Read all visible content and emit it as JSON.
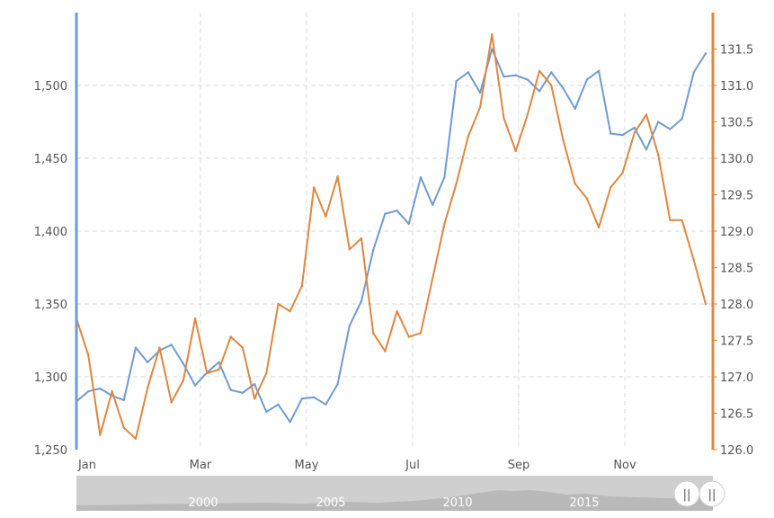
{
  "chart_data": {
    "type": "line",
    "title": "",
    "xlabel": "",
    "x_ticks": [
      "Jan",
      "Mar",
      "May",
      "Jul",
      "Sep",
      "Nov"
    ],
    "y_left": {
      "range": [
        1250,
        1550
      ],
      "ticks": [
        "1,250",
        "1,300",
        "1,350",
        "1,400",
        "1,450",
        "1,500"
      ]
    },
    "y_right": {
      "range": [
        126.0,
        132.0
      ],
      "ticks": [
        "126.0",
        "126.5",
        "127.0",
        "127.5",
        "128.0",
        "128.5",
        "129.0",
        "129.5",
        "130.0",
        "130.5",
        "131.0",
        "131.5"
      ]
    },
    "grid": true,
    "legend": "none",
    "series": [
      {
        "axis": "left",
        "color": "#6f9bd2",
        "values": [
          1283,
          1290,
          1292,
          1287,
          1284,
          1320,
          1310,
          1318,
          1322,
          1309,
          1294,
          1303,
          1310,
          1291,
          1289,
          1295,
          1276,
          1281,
          1269,
          1285,
          1286,
          1281,
          1295,
          1335,
          1352,
          1387,
          1412,
          1414,
          1405,
          1437,
          1418,
          1437,
          1503,
          1509,
          1495,
          1525,
          1506,
          1507,
          1504,
          1496,
          1509,
          1498,
          1484,
          1504,
          1510,
          1467,
          1466,
          1471,
          1456,
          1475,
          1470,
          1477,
          1509,
          1522
        ]
      },
      {
        "axis": "right",
        "color": "#de8740",
        "values": [
          127.8,
          127.3,
          126.2,
          126.8,
          126.3,
          126.15,
          126.85,
          127.4,
          126.65,
          126.95,
          127.8,
          127.05,
          127.1,
          127.55,
          127.4,
          126.7,
          127.05,
          128.0,
          127.9,
          128.25,
          129.6,
          129.2,
          129.75,
          128.75,
          128.9,
          127.6,
          127.35,
          127.9,
          127.55,
          127.6,
          128.35,
          129.1,
          129.65,
          130.3,
          130.7,
          131.7,
          130.55,
          130.1,
          130.6,
          131.2,
          131.0,
          130.25,
          129.65,
          129.45,
          129.05,
          129.6,
          129.8,
          130.35,
          130.6,
          130.05,
          129.15,
          129.15,
          128.6,
          128.0
        ]
      }
    ]
  },
  "navigator": {
    "labels": [
      "2000",
      "2005",
      "2010",
      "2015"
    ],
    "handle_glyph": "||"
  }
}
